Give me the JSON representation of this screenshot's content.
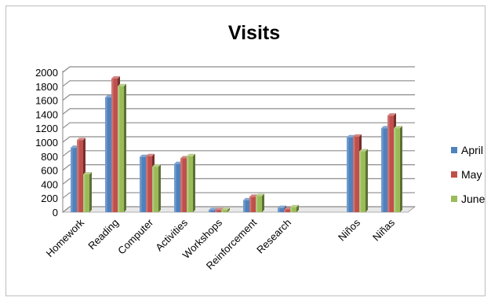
{
  "chart_data": {
    "type": "bar",
    "title": "Visits",
    "categories": [
      "Homework",
      "Reading",
      "Computer",
      "Activities",
      "Workshops",
      "Reinforcement",
      "Research",
      "",
      "Niños",
      "Niñas"
    ],
    "series": [
      {
        "name": "April",
        "color": "#4f81bd",
        "values": [
          920,
          1640,
          790,
          690,
          30,
          170,
          60,
          null,
          1070,
          1200
        ]
      },
      {
        "name": "May",
        "color": "#c0504d",
        "values": [
          1030,
          1910,
          800,
          770,
          30,
          220,
          40,
          null,
          1080,
          1380
        ]
      },
      {
        "name": "June",
        "color": "#9bbb59",
        "values": [
          540,
          1800,
          650,
          800,
          30,
          230,
          70,
          null,
          870,
          1200
        ]
      }
    ],
    "ylim": [
      0,
      2000
    ],
    "yticks": [
      0,
      200,
      400,
      600,
      800,
      1000,
      1200,
      1400,
      1600,
      1800,
      2000
    ],
    "grid": true,
    "legend_position": "right",
    "style": "3d-clustered-column"
  }
}
